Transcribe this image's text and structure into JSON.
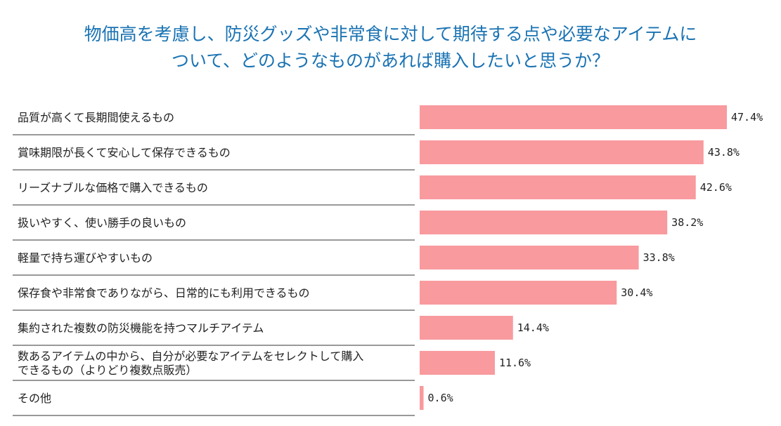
{
  "chart_data": {
    "type": "bar",
    "orientation": "horizontal",
    "title_lines": [
      "物価高を考慮し、防災グッズや非常食に対して期待する点や必要なアイテムに",
      "ついて、どのようなものがあれば購入したいと思うか？"
    ],
    "categories": [
      [
        "品質が高くて長期間使えるもの"
      ],
      [
        "賞味期限が長くて安心して保存できるもの"
      ],
      [
        "リーズナブルな価格で購入できるもの"
      ],
      [
        "扱いやすく、使い勝手の良いもの"
      ],
      [
        "軽量で持ち運びやすいもの"
      ],
      [
        "保存食や非常食でありながら、日常的にも利用できるもの"
      ],
      [
        "集約された複数の防災機能を持つマルチアイテム"
      ],
      [
        "数あるアイテムの中から、自分が必要なアイテムをセレクトして購入",
        "できるもの（よりどり複数点販売）"
      ],
      [
        "その他"
      ]
    ],
    "values": [
      47.4,
      43.8,
      42.6,
      38.2,
      33.8,
      30.4,
      14.4,
      11.6,
      0.6
    ],
    "value_labels": [
      "47.4%",
      "43.8%",
      "42.6%",
      "38.2%",
      "33.8%",
      "30.4%",
      "14.4%",
      "11.6%",
      "0.6%"
    ],
    "xlim": [
      0,
      47.4
    ],
    "colors": {
      "bar": "#f89a9e",
      "title": "#1a73b3",
      "divider": "#333333",
      "text": "#222222"
    },
    "grid": false
  }
}
